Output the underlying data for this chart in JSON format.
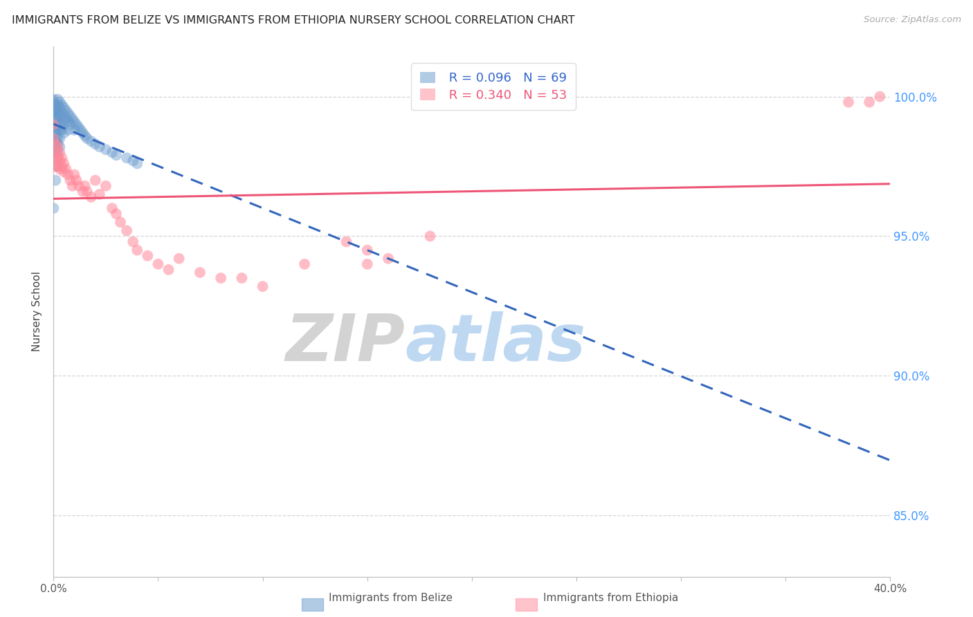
{
  "title": "IMMIGRANTS FROM BELIZE VS IMMIGRANTS FROM ETHIOPIA NURSERY SCHOOL CORRELATION CHART",
  "source": "Source: ZipAtlas.com",
  "ylabel": "Nursery School",
  "ytick_labels": [
    "85.0%",
    "90.0%",
    "95.0%",
    "100.0%"
  ],
  "ytick_values": [
    0.85,
    0.9,
    0.95,
    1.0
  ],
  "xmin": 0.0,
  "xmax": 0.4,
  "ymin": 0.828,
  "ymax": 1.018,
  "belize_color": "#6699CC",
  "ethiopia_color": "#FF8899",
  "trendline_belize_color": "#3366BB",
  "trendline_ethiopia_color": "#EE5577",
  "belize_R": 0.096,
  "belize_N": 69,
  "ethiopia_R": 0.34,
  "ethiopia_N": 53,
  "belize_x": [
    0.0,
    0.0,
    0.001,
    0.001,
    0.001,
    0.001,
    0.001,
    0.001,
    0.001,
    0.001,
    0.001,
    0.001,
    0.001,
    0.001,
    0.001,
    0.001,
    0.002,
    0.002,
    0.002,
    0.002,
    0.002,
    0.002,
    0.002,
    0.002,
    0.002,
    0.002,
    0.003,
    0.003,
    0.003,
    0.003,
    0.003,
    0.003,
    0.003,
    0.004,
    0.004,
    0.004,
    0.004,
    0.005,
    0.005,
    0.005,
    0.005,
    0.006,
    0.006,
    0.007,
    0.007,
    0.007,
    0.008,
    0.008,
    0.009,
    0.01,
    0.01,
    0.011,
    0.012,
    0.013,
    0.014,
    0.015,
    0.016,
    0.018,
    0.02,
    0.022,
    0.025,
    0.028,
    0.03,
    0.035,
    0.038,
    0.04,
    0.0,
    0.001,
    0.002
  ],
  "belize_y": [
    0.999,
    0.998,
    0.997,
    0.996,
    0.995,
    0.994,
    0.993,
    0.992,
    0.99,
    0.989,
    0.988,
    0.987,
    0.985,
    0.984,
    0.982,
    0.98,
    0.999,
    0.997,
    0.995,
    0.993,
    0.99,
    0.988,
    0.985,
    0.983,
    0.98,
    0.978,
    0.998,
    0.996,
    0.993,
    0.99,
    0.988,
    0.985,
    0.982,
    0.997,
    0.994,
    0.991,
    0.988,
    0.996,
    0.993,
    0.99,
    0.987,
    0.995,
    0.992,
    0.994,
    0.991,
    0.988,
    0.993,
    0.99,
    0.992,
    0.991,
    0.988,
    0.99,
    0.989,
    0.988,
    0.987,
    0.986,
    0.985,
    0.984,
    0.983,
    0.982,
    0.981,
    0.98,
    0.979,
    0.978,
    0.977,
    0.976,
    0.96,
    0.97,
    0.975
  ],
  "ethiopia_x": [
    0.0,
    0.0,
    0.001,
    0.001,
    0.001,
    0.001,
    0.002,
    0.002,
    0.002,
    0.003,
    0.003,
    0.003,
    0.004,
    0.004,
    0.005,
    0.005,
    0.006,
    0.007,
    0.008,
    0.009,
    0.01,
    0.011,
    0.012,
    0.014,
    0.015,
    0.016,
    0.018,
    0.02,
    0.022,
    0.025,
    0.028,
    0.03,
    0.032,
    0.035,
    0.038,
    0.04,
    0.045,
    0.05,
    0.055,
    0.06,
    0.07,
    0.08,
    0.09,
    0.1,
    0.12,
    0.15,
    0.14,
    0.16,
    0.18,
    0.38,
    0.39,
    0.395,
    0.15
  ],
  "ethiopia_y": [
    0.99,
    0.985,
    0.983,
    0.98,
    0.978,
    0.975,
    0.982,
    0.978,
    0.975,
    0.98,
    0.977,
    0.974,
    0.978,
    0.975,
    0.976,
    0.973,
    0.974,
    0.972,
    0.97,
    0.968,
    0.972,
    0.97,
    0.968,
    0.966,
    0.968,
    0.966,
    0.964,
    0.97,
    0.965,
    0.968,
    0.96,
    0.958,
    0.955,
    0.952,
    0.948,
    0.945,
    0.943,
    0.94,
    0.938,
    0.942,
    0.937,
    0.935,
    0.935,
    0.932,
    0.94,
    0.945,
    0.948,
    0.942,
    0.95,
    0.998,
    0.998,
    1.0,
    0.94
  ],
  "watermark_zip": "ZIP",
  "watermark_atlas": "atlas",
  "grid_color": "#cccccc",
  "axis_color": "#bbbbbb",
  "xtick_positions": [
    0.0,
    0.05,
    0.1,
    0.15,
    0.2,
    0.25,
    0.3,
    0.35,
    0.4
  ]
}
